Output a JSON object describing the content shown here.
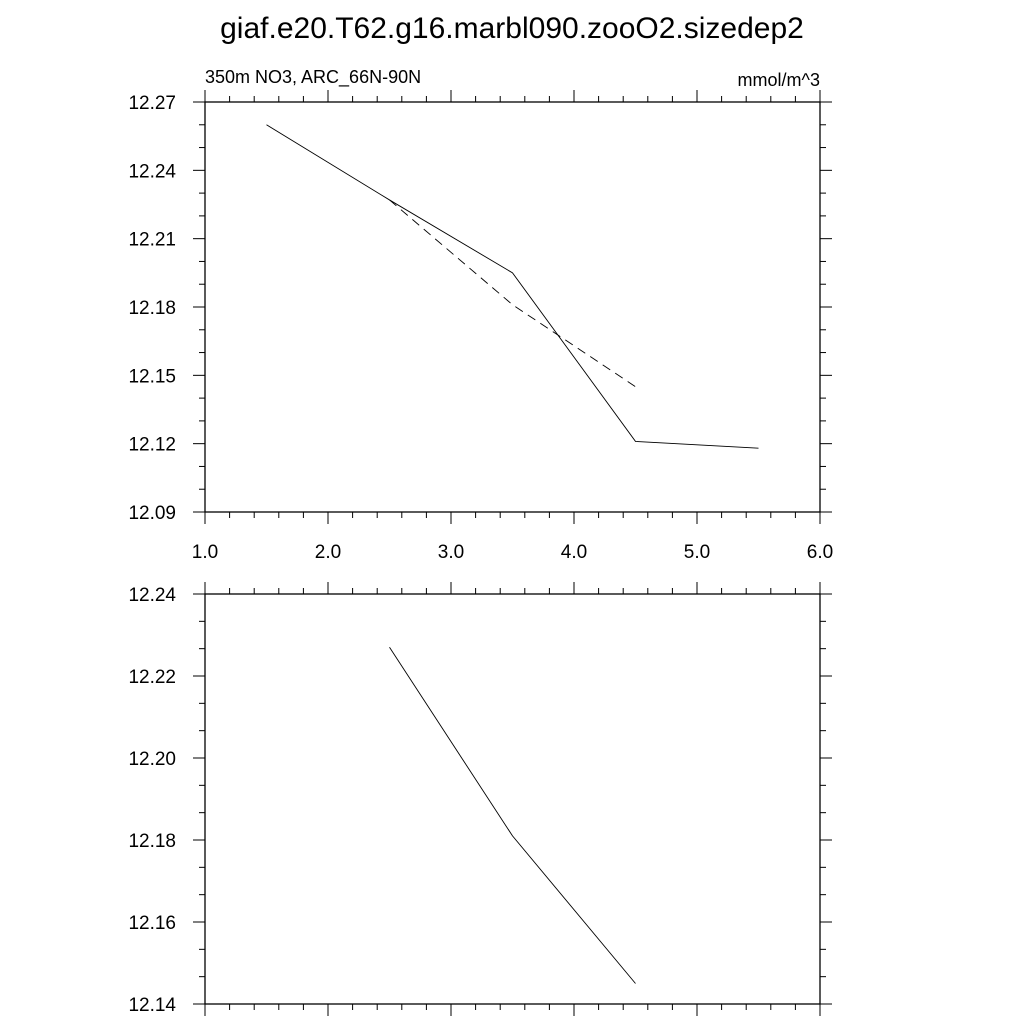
{
  "figure": {
    "title": "giaf.e20.T62.g16.marbl090.zooO2.sizedep2"
  },
  "chart_data": [
    {
      "type": "line",
      "left_label": "350m NO3, ARC_66N-90N",
      "right_label": "mmol/m^3",
      "xlim": [
        1.0,
        6.0
      ],
      "ylim": [
        12.09,
        12.27
      ],
      "x_ticks": [
        1.0,
        2.0,
        3.0,
        4.0,
        5.0,
        6.0
      ],
      "x_tick_labels": [
        "1.0",
        "2.0",
        "3.0",
        "4.0",
        "5.0",
        "6.0"
      ],
      "y_ticks": [
        12.09,
        12.12,
        12.15,
        12.18,
        12.21,
        12.24,
        12.27
      ],
      "y_tick_labels": [
        "12.09",
        "12.12",
        "12.15",
        "12.18",
        "12.21",
        "12.24",
        "12.27"
      ],
      "grid": false,
      "series": [
        {
          "style": "solid",
          "x": [
            1.5,
            2.5,
            3.5,
            4.5,
            5.5
          ],
          "y": [
            12.26,
            12.227,
            12.195,
            12.121,
            12.118
          ]
        },
        {
          "style": "dashed",
          "x": [
            2.5,
            3.5,
            4.5
          ],
          "y": [
            12.227,
            12.181,
            12.145
          ]
        }
      ]
    },
    {
      "type": "line",
      "xlim": [
        1.0,
        6.0
      ],
      "ylim": [
        12.14,
        12.24
      ],
      "x_ticks": [
        1.0,
        2.0,
        3.0,
        4.0,
        5.0,
        6.0
      ],
      "y_ticks": [
        12.14,
        12.16,
        12.18,
        12.2,
        12.22,
        12.24
      ],
      "y_tick_labels": [
        "12.14",
        "12.16",
        "12.18",
        "12.20",
        "12.22",
        "12.24"
      ],
      "grid": false,
      "series": [
        {
          "style": "solid",
          "x": [
            2.5,
            3.5,
            4.5
          ],
          "y": [
            12.227,
            12.181,
            12.145
          ]
        }
      ]
    }
  ]
}
